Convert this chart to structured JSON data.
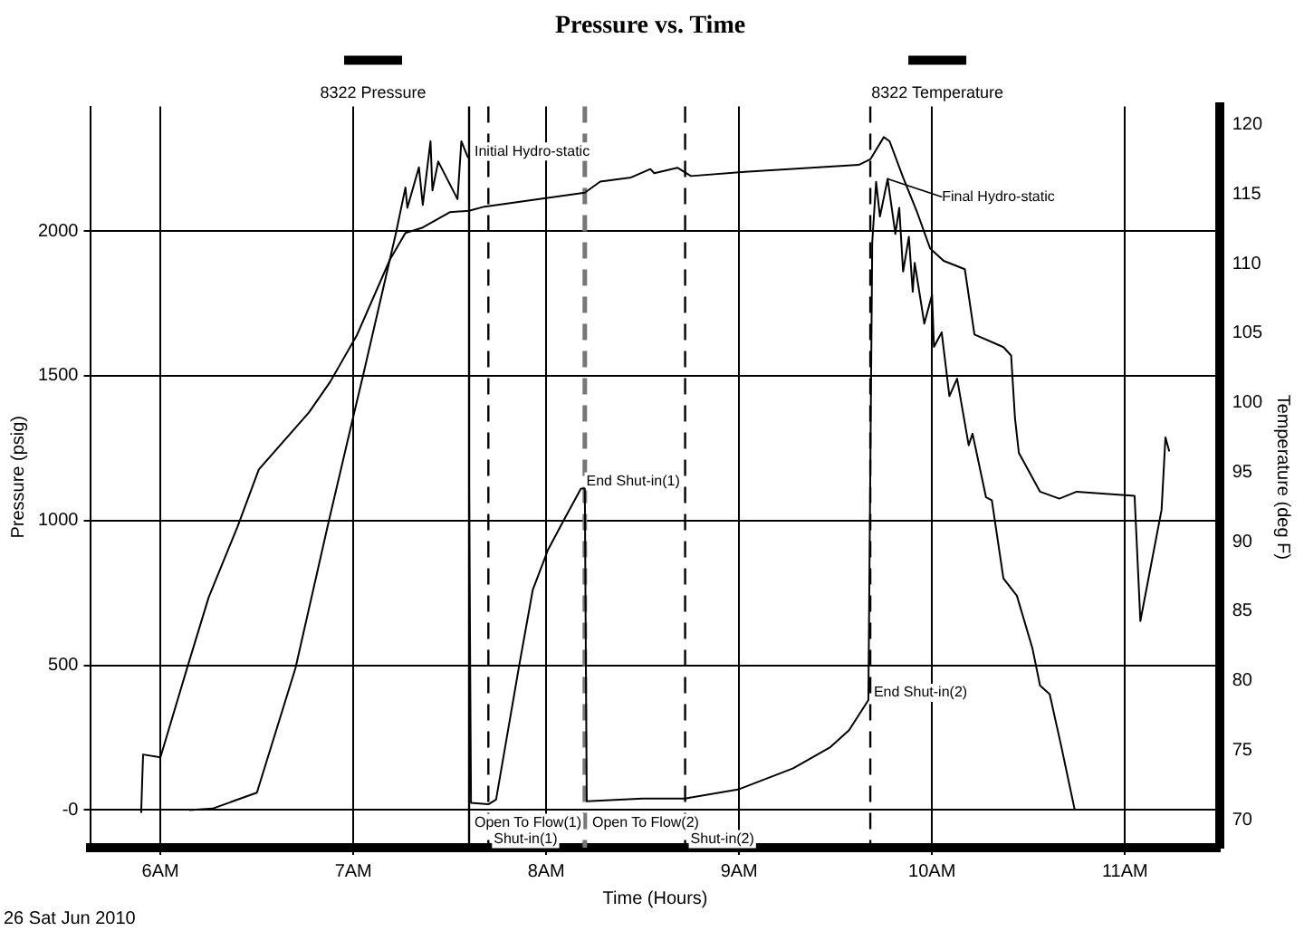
{
  "chart_data": {
    "type": "line",
    "title": "Pressure vs. Time",
    "xlabel": "Time (Hours)",
    "ylabel": "Pressure (psig)",
    "y2label": "Temperature (deg F)",
    "series": [
      {
        "name": "8322 Pressure",
        "color": "#000000",
        "x": [
          6.15,
          6.27,
          6.5,
          6.7,
          6.87,
          7.0,
          7.05,
          7.22,
          7.27,
          7.28,
          7.34,
          7.36,
          7.4,
          7.41,
          7.44,
          7.54,
          7.56,
          7.59,
          7.6,
          7.6,
          7.61,
          7.7,
          7.74,
          7.86,
          7.93,
          8.01,
          8.09,
          8.18,
          8.2,
          8.21,
          8.5,
          8.72,
          9.0,
          9.28,
          9.47,
          9.57,
          9.67,
          9.69,
          9.71,
          9.73,
          9.77,
          9.81,
          9.83,
          9.85,
          9.88,
          9.9,
          9.91,
          9.96,
          10.0,
          10.01,
          10.05,
          10.09,
          10.13,
          10.19,
          10.21,
          10.28,
          10.31,
          10.37,
          10.44,
          10.52,
          10.56,
          10.61,
          10.67,
          10.74
        ],
        "values": [
          0,
          5,
          60,
          490,
          990,
          1360,
          1500,
          1990,
          2150,
          2080,
          2220,
          2090,
          2310,
          2140,
          2240,
          2110,
          2310,
          2260,
          2250,
          1130,
          25,
          20,
          36,
          500,
          760,
          900,
          1000,
          1110,
          1110,
          30,
          40,
          40,
          72,
          144,
          216,
          276,
          380,
          1960,
          2170,
          2050,
          2180,
          1990,
          2080,
          1860,
          1980,
          1790,
          1890,
          1680,
          1780,
          1600,
          1650,
          1430,
          1490,
          1260,
          1300,
          1080,
          1070,
          800,
          740,
          560,
          430,
          400,
          220,
          0
        ]
      },
      {
        "name": "8322 Temperature",
        "color": "#000000",
        "axis": "y2",
        "x": [
          5.9,
          5.91,
          6.0,
          6.14,
          6.25,
          6.4,
          6.51,
          6.77,
          6.88,
          7.02,
          7.19,
          7.27,
          7.36,
          7.5,
          7.6,
          7.68,
          7.99,
          8.2,
          8.28,
          8.44,
          8.54,
          8.56,
          8.68,
          8.75,
          9.03,
          9.62,
          9.68,
          9.75,
          9.78,
          9.85,
          9.92,
          9.99,
          10.06,
          10.17,
          10.22,
          10.37,
          10.41,
          10.43,
          10.45,
          10.56,
          10.66,
          10.75,
          11.05,
          11.08,
          11.19,
          11.21,
          11.23
        ],
        "values": [
          70.5,
          74.7,
          74.5,
          81.0,
          86.0,
          91.1,
          95.2,
          99.3,
          101.5,
          104.9,
          110.3,
          112.2,
          112.6,
          113.7,
          113.8,
          114.1,
          114.7,
          115.1,
          115.9,
          116.2,
          116.8,
          116.5,
          116.9,
          116.3,
          116.6,
          117.1,
          117.5,
          119.1,
          118.8,
          116.2,
          113.8,
          111.1,
          110.2,
          109.6,
          104.9,
          104.0,
          103.4,
          98.9,
          96.4,
          93.6,
          93.1,
          93.6,
          93.3,
          84.3,
          92.3,
          97.5,
          96.5
        ]
      }
    ],
    "xlim": [
      5.64,
      11.49
    ],
    "xticks": [
      {
        "value": 6,
        "label": "6AM"
      },
      {
        "value": 7,
        "label": "7AM"
      },
      {
        "value": 8,
        "label": "8AM"
      },
      {
        "value": 9,
        "label": "9AM"
      },
      {
        "value": 10,
        "label": "10AM"
      },
      {
        "value": 11,
        "label": "11AM"
      }
    ],
    "ylim": [
      -130,
      2430
    ],
    "yticks": [
      {
        "value": 0,
        "label": "-0"
      },
      500,
      1000,
      1500,
      2000
    ],
    "y2lim": [
      68,
      121.3
    ],
    "y2ticks": [
      70,
      75,
      80,
      85,
      90,
      95,
      100,
      105,
      110,
      115,
      120
    ],
    "ref_lines": [
      {
        "axis": "x",
        "value": 7.6,
        "color": "#000000",
        "line_style": "solid"
      },
      {
        "axis": "x",
        "value": 7.7,
        "color": "#000000",
        "line_style": "dashed"
      },
      {
        "axis": "x",
        "value": 8.2,
        "color": "#777777",
        "line_style": "dashed"
      },
      {
        "axis": "x",
        "value": 8.72,
        "color": "#000000",
        "line_style": "dashed"
      },
      {
        "axis": "x",
        "value": 9.68,
        "color": "#000000",
        "line_style": "dashed"
      }
    ],
    "annotations": [
      {
        "text": "Initial Hydro-static",
        "x": 7.6,
        "y": 2250
      },
      {
        "text": "Final Hydro-static",
        "x": 9.77,
        "y": 2180
      },
      {
        "text": "End Shut-in(1)",
        "x": 8.18,
        "y": 1110
      },
      {
        "text": "Open To Flow(1)",
        "x": 7.6,
        "y": 25
      },
      {
        "text": "Shut-in(1)",
        "x": 7.7,
        "y": 20
      },
      {
        "text": "Open To Flow(2)",
        "x": 8.21,
        "y": 30
      },
      {
        "text": "Shut-in(2)",
        "x": 8.72,
        "y": 40
      },
      {
        "text": "End Shut-in(2)",
        "x": 9.67,
        "y": 380
      },
      "26 Sat Jun 2010"
    ],
    "grid": true,
    "legend": "top",
    "marker": "none",
    "line_style": "solid"
  }
}
